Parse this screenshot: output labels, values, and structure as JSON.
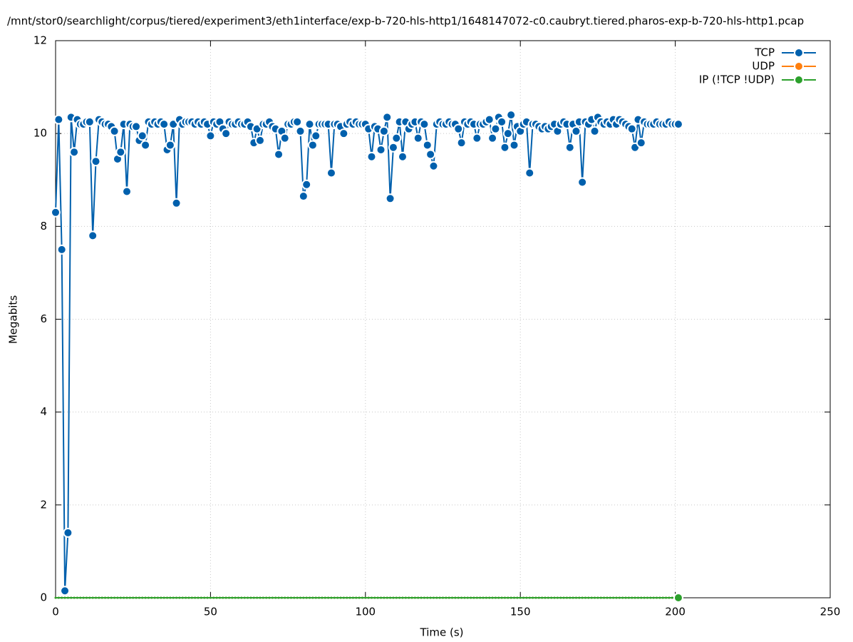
{
  "chart_data": {
    "type": "line",
    "title": "/mnt/stor0/searchlight/corpus/tiered/experiment3/eth1interface/exp-b-720-hls-http1/1648147072-c0.caubryt.tiered.pharos-exp-b-720-hls-http1.pcap",
    "x_label": "Time (s)",
    "y_label": "Megabits",
    "xlim": [
      0,
      250
    ],
    "xticks": [
      0,
      50,
      100,
      150,
      200,
      250
    ],
    "ylim": [
      0,
      12
    ],
    "yticks": [
      0,
      2,
      4,
      6,
      8,
      10,
      12
    ],
    "grid": true,
    "legend": "top-right",
    "x": [
      0,
      1,
      2,
      3,
      4,
      5,
      6,
      7,
      8,
      9,
      10,
      11,
      12,
      13,
      14,
      15,
      16,
      17,
      18,
      19,
      20,
      21,
      22,
      23,
      24,
      25,
      26,
      27,
      28,
      29,
      30,
      31,
      32,
      33,
      34,
      35,
      36,
      37,
      38,
      39,
      40,
      41,
      42,
      43,
      44,
      45,
      46,
      47,
      48,
      49,
      50,
      51,
      52,
      53,
      54,
      55,
      56,
      57,
      58,
      59,
      60,
      61,
      62,
      63,
      64,
      65,
      66,
      67,
      68,
      69,
      70,
      71,
      72,
      73,
      74,
      75,
      76,
      77,
      78,
      79,
      80,
      81,
      82,
      83,
      84,
      85,
      86,
      87,
      88,
      89,
      90,
      91,
      92,
      93,
      94,
      95,
      96,
      97,
      98,
      99,
      100,
      101,
      102,
      103,
      104,
      105,
      106,
      107,
      108,
      109,
      110,
      111,
      112,
      113,
      114,
      115,
      116,
      117,
      118,
      119,
      120,
      121,
      122,
      123,
      124,
      125,
      126,
      127,
      128,
      129,
      130,
      131,
      132,
      133,
      134,
      135,
      136,
      137,
      138,
      139,
      140,
      141,
      142,
      143,
      144,
      145,
      146,
      147,
      148,
      149,
      150,
      151,
      152,
      153,
      154,
      155,
      156,
      157,
      158,
      159,
      160,
      161,
      162,
      163,
      164,
      165,
      166,
      167,
      168,
      169,
      170,
      171,
      172,
      173,
      174,
      175,
      176,
      177,
      178,
      179,
      180,
      181,
      182,
      183,
      184,
      185,
      186,
      187,
      188,
      189,
      190,
      191,
      192,
      193,
      194,
      195,
      196,
      197,
      198,
      199,
      200,
      201
    ],
    "series": [
      {
        "name": "TCP",
        "color": "#0060ad",
        "values": [
          8.3,
          10.3,
          7.5,
          0.15,
          1.4,
          10.35,
          9.6,
          10.3,
          10.2,
          10.2,
          10.25,
          10.25,
          7.8,
          9.4,
          10.3,
          10.25,
          10.2,
          10.2,
          10.15,
          10.05,
          9.45,
          9.6,
          10.2,
          8.75,
          10.2,
          10.15,
          10.15,
          9.85,
          9.95,
          9.75,
          10.25,
          10.2,
          10.25,
          10.2,
          10.25,
          10.2,
          9.65,
          9.75,
          10.2,
          8.5,
          10.3,
          10.2,
          10.25,
          10.25,
          10.25,
          10.2,
          10.25,
          10.2,
          10.25,
          10.2,
          9.95,
          10.25,
          10.2,
          10.25,
          10.1,
          10.0,
          10.25,
          10.2,
          10.2,
          10.25,
          10.2,
          10.2,
          10.25,
          10.15,
          9.8,
          10.1,
          9.85,
          10.2,
          10.2,
          10.25,
          10.15,
          10.1,
          9.55,
          10.05,
          9.9,
          10.2,
          10.2,
          10.25,
          10.25,
          10.05,
          8.65,
          8.9,
          10.2,
          9.75,
          9.95,
          10.2,
          10.2,
          10.2,
          10.2,
          9.15,
          10.2,
          10.2,
          10.15,
          10.0,
          10.2,
          10.25,
          10.2,
          10.25,
          10.2,
          10.2,
          10.2,
          10.1,
          9.5,
          10.15,
          10.1,
          9.65,
          10.05,
          10.35,
          8.6,
          9.7,
          9.9,
          10.25,
          9.5,
          10.25,
          10.1,
          10.2,
          10.25,
          9.9,
          10.25,
          10.2,
          9.75,
          9.55,
          9.3,
          10.2,
          10.25,
          10.2,
          10.2,
          10.25,
          10.2,
          10.2,
          10.1,
          9.8,
          10.25,
          10.2,
          10.25,
          10.2,
          9.9,
          10.2,
          10.2,
          10.25,
          10.3,
          9.9,
          10.1,
          10.35,
          10.25,
          9.7,
          10.0,
          10.4,
          9.75,
          10.15,
          10.05,
          10.2,
          10.25,
          9.15,
          10.2,
          10.2,
          10.15,
          10.1,
          10.15,
          10.1,
          10.15,
          10.2,
          10.05,
          10.2,
          10.25,
          10.2,
          9.7,
          10.2,
          10.05,
          10.25,
          8.95,
          10.25,
          10.2,
          10.3,
          10.05,
          10.35,
          10.25,
          10.2,
          10.25,
          10.2,
          10.3,
          10.2,
          10.3,
          10.25,
          10.2,
          10.15,
          10.1,
          9.7,
          10.3,
          9.8,
          10.25,
          10.2,
          10.2,
          10.2,
          10.25,
          10.2,
          10.2,
          10.2,
          10.25,
          10.2,
          10.2,
          10.2
        ]
      },
      {
        "name": "UDP",
        "color": "#ff7f0e",
        "values": [
          0,
          0,
          0,
          0,
          0,
          0,
          0,
          0,
          0,
          0,
          0,
          0,
          0,
          0,
          0,
          0,
          0,
          0,
          0,
          0,
          0,
          0,
          0,
          0,
          0,
          0,
          0,
          0,
          0,
          0,
          0,
          0,
          0,
          0,
          0,
          0,
          0,
          0,
          0,
          0,
          0,
          0,
          0,
          0,
          0,
          0,
          0,
          0,
          0,
          0,
          0,
          0,
          0,
          0,
          0,
          0,
          0,
          0,
          0,
          0,
          0,
          0,
          0,
          0,
          0,
          0,
          0,
          0,
          0,
          0,
          0,
          0,
          0,
          0,
          0,
          0,
          0,
          0,
          0,
          0,
          0,
          0,
          0,
          0,
          0,
          0,
          0,
          0,
          0,
          0,
          0,
          0,
          0,
          0,
          0,
          0,
          0,
          0,
          0,
          0,
          0,
          0,
          0,
          0,
          0,
          0,
          0,
          0,
          0,
          0,
          0,
          0,
          0,
          0,
          0,
          0,
          0,
          0,
          0,
          0,
          0,
          0,
          0,
          0,
          0,
          0,
          0,
          0,
          0,
          0,
          0,
          0,
          0,
          0,
          0,
          0,
          0,
          0,
          0,
          0,
          0,
          0,
          0,
          0,
          0,
          0,
          0,
          0,
          0,
          0,
          0,
          0,
          0,
          0,
          0,
          0,
          0,
          0,
          0,
          0,
          0,
          0,
          0,
          0,
          0,
          0,
          0,
          0,
          0,
          0,
          0,
          0,
          0,
          0,
          0,
          0,
          0,
          0,
          0,
          0,
          0,
          0,
          0,
          0,
          0,
          0,
          0,
          0,
          0,
          0,
          0,
          0,
          0,
          0,
          0,
          0,
          0,
          0,
          0,
          0,
          0,
          0
        ]
      },
      {
        "name": "IP (!TCP  !UDP)",
        "color": "#2ca02c",
        "values": [
          0,
          0,
          0,
          0,
          0,
          0,
          0,
          0,
          0,
          0,
          0,
          0,
          0,
          0,
          0,
          0,
          0,
          0,
          0,
          0,
          0,
          0,
          0,
          0,
          0,
          0,
          0,
          0,
          0,
          0,
          0,
          0,
          0,
          0,
          0,
          0,
          0,
          0,
          0,
          0,
          0,
          0,
          0,
          0,
          0,
          0,
          0,
          0,
          0,
          0,
          0,
          0,
          0,
          0,
          0,
          0,
          0,
          0,
          0,
          0,
          0,
          0,
          0,
          0,
          0,
          0,
          0,
          0,
          0,
          0,
          0,
          0,
          0,
          0,
          0,
          0,
          0,
          0,
          0,
          0,
          0,
          0,
          0,
          0,
          0,
          0,
          0,
          0,
          0,
          0,
          0,
          0,
          0,
          0,
          0,
          0,
          0,
          0,
          0,
          0,
          0,
          0,
          0,
          0,
          0,
          0,
          0,
          0,
          0,
          0,
          0,
          0,
          0,
          0,
          0,
          0,
          0,
          0,
          0,
          0,
          0,
          0,
          0,
          0,
          0,
          0,
          0,
          0,
          0,
          0,
          0,
          0,
          0,
          0,
          0,
          0,
          0,
          0,
          0,
          0,
          0,
          0,
          0,
          0,
          0,
          0,
          0,
          0,
          0,
          0,
          0,
          0,
          0,
          0,
          0,
          0,
          0,
          0,
          0,
          0,
          0,
          0,
          0,
          0,
          0,
          0,
          0,
          0,
          0,
          0,
          0,
          0,
          0,
          0,
          0,
          0,
          0,
          0,
          0,
          0,
          0,
          0,
          0,
          0,
          0,
          0,
          0,
          0,
          0,
          0,
          0,
          0,
          0,
          0,
          0,
          0,
          0,
          0,
          0,
          0,
          0,
          0
        ]
      }
    ]
  }
}
